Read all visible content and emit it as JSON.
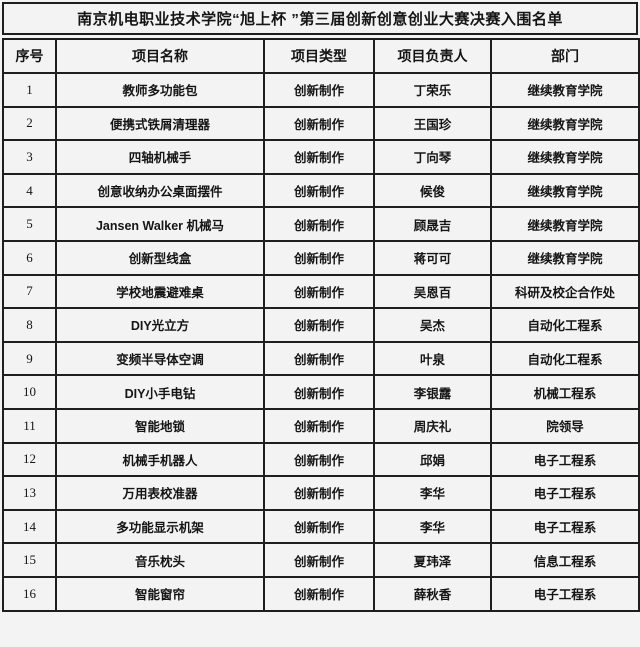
{
  "title": "南京机电职业技术学院“旭上杯 ”第三届创新创意创业大赛决赛入围名单",
  "table": {
    "headers": [
      "序号",
      "项目名称",
      "项目类型",
      "项目负责人",
      "部门"
    ],
    "rows": [
      [
        "1",
        "教师多功能包",
        "创新制作",
        "丁荣乐",
        "继续教育学院"
      ],
      [
        "2",
        "便携式铁屑清理器",
        "创新制作",
        "王国珍",
        "继续教育学院"
      ],
      [
        "3",
        "四轴机械手",
        "创新制作",
        "丁向琴",
        "继续教育学院"
      ],
      [
        "4",
        "创意收纳办公桌面摆件",
        "创新制作",
        "候俊",
        "继续教育学院"
      ],
      [
        "5",
        "Jansen Walker 机械马",
        "创新制作",
        "顾晟吉",
        "继续教育学院"
      ],
      [
        "6",
        "创新型线盒",
        "创新制作",
        "蒋可可",
        "继续教育学院"
      ],
      [
        "7",
        "学校地震避难桌",
        "创新制作",
        "吴恩百",
        "科研及校企合作处"
      ],
      [
        "8",
        "DIY光立方",
        "创新制作",
        "吴杰",
        "自动化工程系"
      ],
      [
        "9",
        "变频半导体空调",
        "创新制作",
        "叶泉",
        "自动化工程系"
      ],
      [
        "10",
        "DIY小手电钻",
        "创新制作",
        "李银露",
        "机械工程系"
      ],
      [
        "11",
        "智能地锁",
        "创新制作",
        "周庆礼",
        "院领导"
      ],
      [
        "12",
        "机械手机器人",
        "创新制作",
        "邱娟",
        "电子工程系"
      ],
      [
        "13",
        "万用表校准器",
        "创新制作",
        "李华",
        "电子工程系"
      ],
      [
        "14",
        "多功能显示机架",
        "创新制作",
        "李华",
        "电子工程系"
      ],
      [
        "15",
        "音乐枕头",
        "创新制作",
        "夏玮泽",
        "信息工程系"
      ],
      [
        "16",
        "智能窗帘",
        "创新制作",
        "薛秋香",
        "电子工程系"
      ]
    ]
  },
  "colors": {
    "background": "#f3f3f3",
    "border": "#1e1e1e",
    "text": "#151515"
  }
}
